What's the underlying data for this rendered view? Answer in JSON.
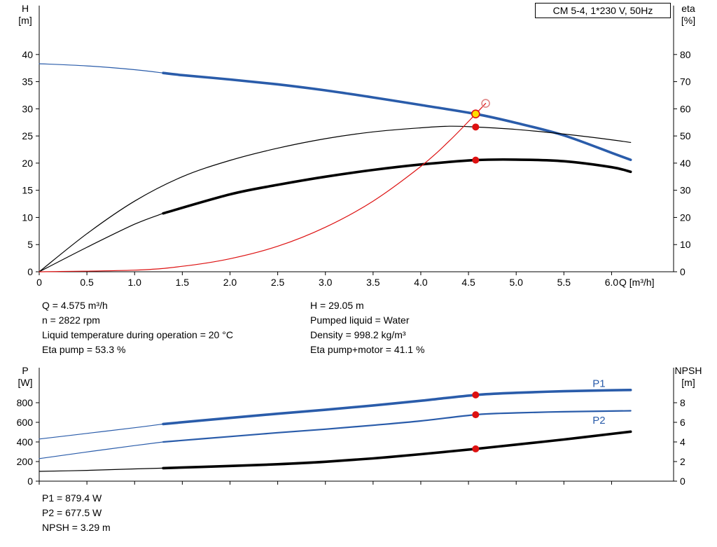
{
  "colors": {
    "blue": "#2a5caa",
    "black": "#000000",
    "red": "#dd1111",
    "open_red": "#e08585",
    "yellow": "#ffdd00",
    "axis": "#000000"
  },
  "chart_data": [
    {
      "id": "hq-eta",
      "type": "line",
      "title": "CM 5-4, 1*230 V, 50Hz",
      "x_axis": {
        "label": "Q [m³/h]",
        "min": 0,
        "max": 6.65,
        "show_labels": true,
        "ticks": [
          {
            "v": 0,
            "t": "0"
          },
          {
            "v": 0.5,
            "t": "0.5"
          },
          {
            "v": 1,
            "t": "1.0"
          },
          {
            "v": 1.5,
            "t": "1.5"
          },
          {
            "v": 2,
            "t": "2.0"
          },
          {
            "v": 2.5,
            "t": "2.5"
          },
          {
            "v": 3,
            "t": "3.0"
          },
          {
            "v": 3.5,
            "t": "3.5"
          },
          {
            "v": 4,
            "t": "4.0"
          },
          {
            "v": 4.5,
            "t": "4.5"
          },
          {
            "v": 5,
            "t": "5.0"
          },
          {
            "v": 5.5,
            "t": "5.5"
          },
          {
            "v": 6,
            "t": "6.0"
          }
        ]
      },
      "y_left": {
        "title_lines": [
          "H",
          "[m]"
        ],
        "min": 0,
        "max": 49,
        "ticks": [
          {
            "v": 0,
            "t": "0"
          },
          {
            "v": 5,
            "t": "5"
          },
          {
            "v": 10,
            "t": "10"
          },
          {
            "v": 15,
            "t": "15"
          },
          {
            "v": 20,
            "t": "20"
          },
          {
            "v": 25,
            "t": "25"
          },
          {
            "v": 30,
            "t": "30"
          },
          {
            "v": 35,
            "t": "35"
          },
          {
            "v": 40,
            "t": "40"
          }
        ]
      },
      "y_right": {
        "title_lines": [
          "eta",
          "[%]"
        ],
        "min": 0,
        "max": 98,
        "ticks": [
          {
            "v": 0,
            "t": "0"
          },
          {
            "v": 10,
            "t": "10"
          },
          {
            "v": 20,
            "t": "20"
          },
          {
            "v": 30,
            "t": "30"
          },
          {
            "v": 40,
            "t": "40"
          },
          {
            "v": 50,
            "t": "50"
          },
          {
            "v": 60,
            "t": "60"
          },
          {
            "v": 70,
            "t": "70"
          },
          {
            "v": 80,
            "t": "80"
          }
        ]
      },
      "series": [
        {
          "name": "h-curve",
          "axis": "left",
          "color": "blue",
          "segments": [
            {
              "emphasis": "thin",
              "points": [
                [
                  0,
                  38.3
                ],
                [
                  0.5,
                  37.9
                ],
                [
                  1.0,
                  37.2
                ],
                [
                  1.3,
                  36.6
                ]
              ]
            },
            {
              "emphasis": "thick",
              "points": [
                [
                  1.3,
                  36.6
                ],
                [
                  1.5,
                  36.2
                ],
                [
                  2.0,
                  35.4
                ],
                [
                  2.5,
                  34.5
                ],
                [
                  3.0,
                  33.4
                ],
                [
                  3.5,
                  32.1
                ],
                [
                  4.0,
                  30.7
                ],
                [
                  4.575,
                  29.05
                ],
                [
                  5.0,
                  27.4
                ],
                [
                  5.5,
                  25.1
                ],
                [
                  6.0,
                  21.9
                ],
                [
                  6.2,
                  20.6
                ]
              ]
            }
          ]
        },
        {
          "name": "eta-pump",
          "axis": "right",
          "color": "black",
          "segments": [
            {
              "emphasis": "thin",
              "points": [
                [
                  0,
                  0
                ],
                [
                  0.5,
                  14
                ],
                [
                  1.0,
                  26
                ],
                [
                  1.5,
                  35
                ],
                [
                  2.0,
                  41
                ],
                [
                  2.5,
                  45.5
                ],
                [
                  3.0,
                  49
                ],
                [
                  3.5,
                  51.5
                ],
                [
                  4.0,
                  53
                ],
                [
                  4.3,
                  53.6
                ],
                [
                  4.575,
                  53.3
                ],
                [
                  5.0,
                  52.4
                ],
                [
                  5.5,
                  50.7
                ],
                [
                  6.0,
                  48.6
                ],
                [
                  6.2,
                  47.6
                ]
              ]
            }
          ]
        },
        {
          "name": "eta-pump-motor",
          "axis": "right",
          "color": "black",
          "segments": [
            {
              "emphasis": "thin",
              "points": [
                [
                  0,
                  0
                ],
                [
                  0.5,
                  9
                ],
                [
                  1.0,
                  17.5
                ],
                [
                  1.3,
                  21.5
                ]
              ]
            },
            {
              "emphasis": "thick",
              "points": [
                [
                  1.3,
                  21.5
                ],
                [
                  2.0,
                  28.5
                ],
                [
                  2.5,
                  32
                ],
                [
                  3.0,
                  35
                ],
                [
                  3.5,
                  37.5
                ],
                [
                  4.0,
                  39.5
                ],
                [
                  4.575,
                  41.1
                ],
                [
                  5.0,
                  41.3
                ],
                [
                  5.5,
                  40.7
                ],
                [
                  6.0,
                  38.5
                ],
                [
                  6.2,
                  36.8
                ]
              ]
            }
          ]
        },
        {
          "name": "system-curve",
          "axis": "left",
          "color": "red",
          "segments": [
            {
              "emphasis": "thin",
              "points": [
                [
                  0,
                  0
                ],
                [
                  1.0,
                  0.3
                ],
                [
                  1.5,
                  1.0
                ],
                [
                  2.0,
                  2.4
                ],
                [
                  2.5,
                  4.7
                ],
                [
                  3.0,
                  8.2
                ],
                [
                  3.5,
                  13.0
                ],
                [
                  4.0,
                  19.4
                ],
                [
                  4.3,
                  24.1
                ],
                [
                  4.575,
                  29.05
                ],
                [
                  4.68,
                  31.0
                ]
              ]
            }
          ]
        }
      ],
      "markers": [
        {
          "x": 4.575,
          "y": 29.05,
          "axis": "left",
          "style": "duty-yellow",
          "name": "duty-point-marker"
        },
        {
          "x": 4.68,
          "y": 31.0,
          "axis": "left",
          "style": "circle-open",
          "name": "flow-target-marker"
        },
        {
          "x": 4.575,
          "y": 53.3,
          "axis": "right",
          "style": "dot-red",
          "name": "eta-pump-marker"
        },
        {
          "x": 4.575,
          "y": 41.1,
          "axis": "right",
          "style": "dot-red",
          "name": "eta-pump-motor-marker"
        }
      ],
      "annotations": []
    },
    {
      "id": "power-npsh",
      "type": "line",
      "title": "",
      "x_axis": {
        "label": "",
        "min": 0,
        "max": 6.65,
        "show_labels": false,
        "ticks": [
          {
            "v": 0,
            "t": "0"
          },
          {
            "v": 0.5,
            "t": "0.5"
          },
          {
            "v": 1,
            "t": "1.0"
          },
          {
            "v": 1.5,
            "t": "1.5"
          },
          {
            "v": 2,
            "t": "2.0"
          },
          {
            "v": 2.5,
            "t": "2.5"
          },
          {
            "v": 3,
            "t": "3.0"
          },
          {
            "v": 3.5,
            "t": "3.5"
          },
          {
            "v": 4,
            "t": "4.0"
          },
          {
            "v": 4.5,
            "t": "4.5"
          },
          {
            "v": 5,
            "t": "5.0"
          },
          {
            "v": 5.5,
            "t": "5.5"
          },
          {
            "v": 6,
            "t": "6.0"
          }
        ]
      },
      "y_left": {
        "title_lines": [
          "P",
          "[W]"
        ],
        "min": 0,
        "max": 1157,
        "ticks": [
          {
            "v": 0,
            "t": "0"
          },
          {
            "v": 200,
            "t": "200"
          },
          {
            "v": 400,
            "t": "400"
          },
          {
            "v": 600,
            "t": "600"
          },
          {
            "v": 800,
            "t": "800"
          }
        ]
      },
      "y_right": {
        "title_lines": [
          "NPSH",
          "[m]"
        ],
        "min": 0,
        "max": 11.57,
        "ticks": [
          {
            "v": 0,
            "t": "0"
          },
          {
            "v": 2,
            "t": "2"
          },
          {
            "v": 4,
            "t": "4"
          },
          {
            "v": 6,
            "t": "6"
          },
          {
            "v": 8,
            "t": "8"
          }
        ]
      },
      "series": [
        {
          "name": "p1",
          "axis": "left",
          "color": "blue",
          "segments": [
            {
              "emphasis": "thin",
              "points": [
                [
                  0,
                  430
                ],
                [
                  0.5,
                  487
                ],
                [
                  1.0,
                  545
                ],
                [
                  1.3,
                  583
                ]
              ]
            },
            {
              "emphasis": "thick",
              "points": [
                [
                  1.3,
                  583
                ],
                [
                  2.0,
                  645
                ],
                [
                  2.5,
                  688
                ],
                [
                  3.0,
                  728
                ],
                [
                  3.5,
                  772
                ],
                [
                  4.0,
                  820
                ],
                [
                  4.575,
                  879.4
                ],
                [
                  5.0,
                  901
                ],
                [
                  5.5,
                  917
                ],
                [
                  6.0,
                  927
                ],
                [
                  6.2,
                  930
                ]
              ]
            }
          ]
        },
        {
          "name": "p2",
          "axis": "left",
          "color": "blue",
          "segments": [
            {
              "emphasis": "thin",
              "points": [
                [
                  0,
                  230
                ],
                [
                  0.5,
                  298
                ],
                [
                  1.0,
                  363
                ],
                [
                  1.3,
                  400
                ]
              ]
            },
            {
              "emphasis": "medium",
              "points": [
                [
                  1.3,
                  400
                ],
                [
                  2.0,
                  455
                ],
                [
                  2.5,
                  494
                ],
                [
                  3.0,
                  530
                ],
                [
                  3.5,
                  570
                ],
                [
                  4.0,
                  614
                ],
                [
                  4.575,
                  677.5
                ],
                [
                  5.0,
                  696
                ],
                [
                  5.5,
                  708
                ],
                [
                  6.0,
                  715
                ],
                [
                  6.2,
                  718
                ]
              ]
            }
          ]
        },
        {
          "name": "npsh",
          "axis": "right",
          "color": "black",
          "segments": [
            {
              "emphasis": "thin",
              "points": [
                [
                  0,
                  1.0
                ],
                [
                  0.5,
                  1.1
                ],
                [
                  1.0,
                  1.25
                ],
                [
                  1.3,
                  1.33
                ]
              ]
            },
            {
              "emphasis": "thick",
              "points": [
                [
                  1.3,
                  1.33
                ],
                [
                  2.0,
                  1.55
                ],
                [
                  2.5,
                  1.73
                ],
                [
                  3.0,
                  1.98
                ],
                [
                  3.5,
                  2.32
                ],
                [
                  4.0,
                  2.75
                ],
                [
                  4.575,
                  3.29
                ],
                [
                  5.0,
                  3.73
                ],
                [
                  5.5,
                  4.25
                ],
                [
                  6.0,
                  4.82
                ],
                [
                  6.2,
                  5.05
                ]
              ]
            }
          ]
        }
      ],
      "markers": [
        {
          "x": 4.575,
          "y": 879.4,
          "axis": "left",
          "style": "dot-red",
          "name": "p1-marker"
        },
        {
          "x": 4.575,
          "y": 677.5,
          "axis": "left",
          "style": "dot-red",
          "name": "p2-marker"
        },
        {
          "x": 4.575,
          "y": 3.29,
          "axis": "right",
          "style": "dot-red",
          "name": "npsh-marker"
        }
      ],
      "annotations": [
        {
          "text": "P1",
          "x": 5.8,
          "y": 960,
          "axis": "left",
          "color": "blue"
        },
        {
          "text": "P2",
          "x": 5.8,
          "y": 585,
          "axis": "left",
          "color": "blue"
        }
      ]
    }
  ],
  "info": {
    "left": [
      "Q = 4.575 m³/h",
      "n = 2822 rpm",
      "Liquid temperature during operation = 20 °C",
      "Eta pump = 53.3 %"
    ],
    "right": [
      "H = 29.05 m",
      "Pumped liquid = Water",
      "Density = 998.2 kg/m³",
      "Eta pump+motor = 41.1 %"
    ],
    "bottom": [
      "P1 = 879.4 W",
      "P2 = 677.5 W",
      "NPSH = 3.29 m"
    ]
  }
}
